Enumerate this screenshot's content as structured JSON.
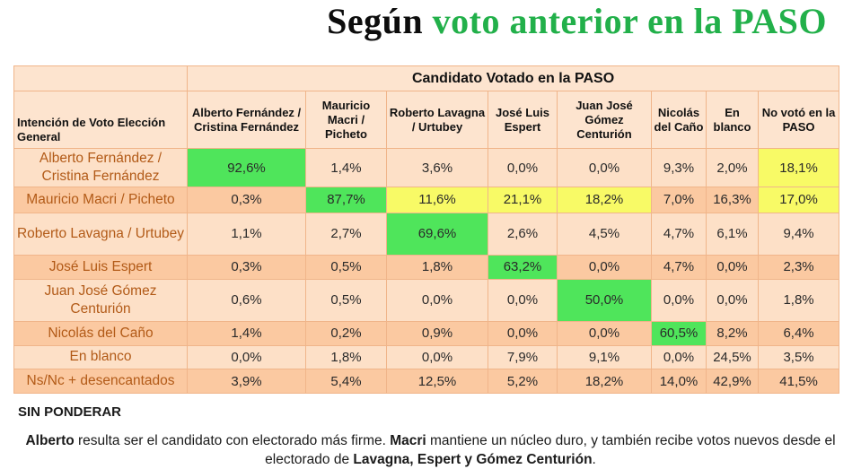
{
  "title": {
    "part1": "Según",
    "part2": "voto anterior en la PASO"
  },
  "table": {
    "group_header": "Candidato Votado en la PASO",
    "row_header": "Intención de Voto Elección General",
    "columns": [
      "Alberto Fernández / Cristina Fernández",
      "Mauricio Macri / Picheto",
      "Roberto Lavagna / Urtubey",
      "José Luis Espert",
      "Juan José Gómez Centurión",
      "Nicolás del Caño",
      "En blanco",
      "No votó en la PASO"
    ],
    "rows": [
      {
        "name": "Alberto Fernández / Cristina Fernández",
        "values": [
          "92,6%",
          "1,4%",
          "3,6%",
          "0,0%",
          "0,0%",
          "9,3%",
          "2,0%",
          "18,1%"
        ],
        "highlight": [
          "green",
          "",
          "",
          "",
          "",
          "",
          "",
          "yellow"
        ]
      },
      {
        "name": "Mauricio Macri / Picheto",
        "values": [
          "0,3%",
          "87,7%",
          "11,6%",
          "21,1%",
          "18,2%",
          "7,0%",
          "16,3%",
          "17,0%"
        ],
        "highlight": [
          "",
          "green",
          "yellow",
          "yellow",
          "yellow",
          "",
          "",
          "yellow"
        ]
      },
      {
        "name": "Roberto Lavagna / Urtubey",
        "values": [
          "1,1%",
          "2,7%",
          "69,6%",
          "2,6%",
          "4,5%",
          "4,7%",
          "6,1%",
          "9,4%"
        ],
        "highlight": [
          "",
          "",
          "green",
          "",
          "",
          "",
          "",
          ""
        ]
      },
      {
        "name": "José Luis Espert",
        "values": [
          "0,3%",
          "0,5%",
          "1,8%",
          "63,2%",
          "0,0%",
          "4,7%",
          "0,0%",
          "2,3%"
        ],
        "highlight": [
          "",
          "",
          "",
          "green",
          "",
          "",
          "",
          ""
        ]
      },
      {
        "name": "Juan José Gómez Centurión",
        "values": [
          "0,6%",
          "0,5%",
          "0,0%",
          "0,0%",
          "50,0%",
          "0,0%",
          "0,0%",
          "1,8%"
        ],
        "highlight": [
          "",
          "",
          "",
          "",
          "green",
          "",
          "",
          ""
        ]
      },
      {
        "name": "Nicolás del Caño",
        "values": [
          "1,4%",
          "0,2%",
          "0,9%",
          "0,0%",
          "0,0%",
          "60,5%",
          "8,2%",
          "6,4%"
        ],
        "highlight": [
          "",
          "",
          "",
          "",
          "",
          "green",
          "",
          ""
        ]
      },
      {
        "name": "En blanco",
        "values": [
          "0,0%",
          "1,8%",
          "0,0%",
          "7,9%",
          "9,1%",
          "0,0%",
          "24,5%",
          "3,5%"
        ],
        "highlight": [
          "",
          "",
          "",
          "",
          "",
          "",
          "",
          ""
        ]
      },
      {
        "name": "Ns/Nc + desencantados",
        "values": [
          "3,9%",
          "5,4%",
          "12,5%",
          "5,2%",
          "18,2%",
          "14,0%",
          "42,9%",
          "41,5%"
        ],
        "highlight": [
          "",
          "",
          "",
          "",
          "",
          "",
          "",
          ""
        ]
      }
    ]
  },
  "footer": {
    "label": "SIN PONDERAR",
    "note": {
      "b1": "Alberto",
      "t1": " resulta ser el candidato con electorado más firme. ",
      "b2": "Macri",
      "t2": " mantiene un núcleo duro, y también recibe votos nuevos desde el electorado de ",
      "b3": "Lavagna, Espert y Gómez Centurión",
      "t3": "."
    }
  },
  "colors": {
    "title_accent": "#22b04a",
    "highlight_green": "#4fe55b",
    "highlight_yellow": "#f8fa66",
    "row_label": "#b25a17"
  }
}
